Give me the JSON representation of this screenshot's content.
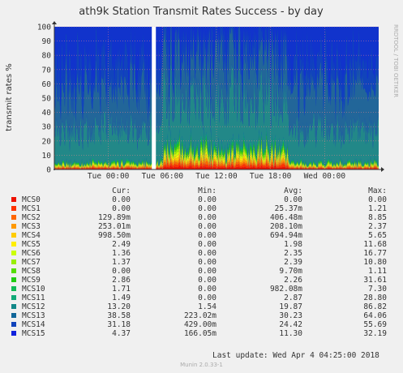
{
  "chart_data": {
    "type": "area",
    "title": "ath9k Station Transmit Rates Success - by day",
    "ylabel": "transmit rates %",
    "ylim": [
      0,
      100
    ],
    "yticks": [
      0,
      10,
      20,
      30,
      40,
      50,
      60,
      70,
      80,
      90,
      100
    ],
    "xticks": [
      "Tue 00:00",
      "Tue 06:00",
      "Tue 12:00",
      "Tue 18:00",
      "Wed 00:00"
    ],
    "x_range": [
      "Mon 18:00",
      "Wed 06:00"
    ],
    "gap_at": "Tue 05:00",
    "grid": true,
    "stacked": true,
    "legend_headers": {
      "cur": "Cur:",
      "min": "Min:",
      "avg": "Avg:",
      "max": "Max:"
    },
    "series": [
      {
        "name": "MCS0",
        "color": "#00cc00",
        "cur": "0.00",
        "min": "0.00",
        "avg": "0.00",
        "max": "0.00"
      },
      {
        "name": "MCS1",
        "color": "#0066b3",
        "cur": "0.00",
        "min": "0.00",
        "avg": "25.37m",
        "max": "1.21"
      },
      {
        "name": "MCS2",
        "color": "#ff8000",
        "cur": "129.89m",
        "min": "0.00",
        "avg": "406.48m",
        "max": "8.85"
      },
      {
        "name": "MCS3",
        "color": "#ffcc00",
        "cur": "253.01m",
        "min": "0.00",
        "avg": "208.10m",
        "max": "2.37"
      },
      {
        "name": "MCS4",
        "color": "#330099",
        "cur": "998.50m",
        "min": "0.00",
        "avg": "694.94m",
        "max": "5.65"
      },
      {
        "name": "MCS5",
        "color": "#990099",
        "cur": "2.49",
        "min": "0.00",
        "avg": "1.98",
        "max": "11.68"
      },
      {
        "name": "MCS6",
        "color": "#ccff00",
        "cur": "1.36",
        "min": "0.00",
        "avg": "2.35",
        "max": "16.77"
      },
      {
        "name": "MCS7",
        "color": "#ff0000",
        "cur": "1.37",
        "min": "0.00",
        "avg": "2.39",
        "max": "10.80"
      },
      {
        "name": "MCS8",
        "color": "#808080",
        "cur": "0.00",
        "min": "0.00",
        "avg": "9.70m",
        "max": "1.11"
      },
      {
        "name": "MCS9",
        "color": "#008f00",
        "cur": "2.86",
        "min": "0.00",
        "avg": "2.26",
        "max": "31.61"
      },
      {
        "name": "MCS10",
        "color": "#00487d",
        "cur": "1.71",
        "min": "0.00",
        "avg": "982.08m",
        "max": "7.30"
      },
      {
        "name": "MCS11",
        "color": "#b35a00",
        "cur": "1.49",
        "min": "0.00",
        "avg": "2.87",
        "max": "28.80"
      },
      {
        "name": "MCS12",
        "color": "#b38f00",
        "cur": "13.20",
        "min": "1.54",
        "avg": "19.87",
        "max": "86.82"
      },
      {
        "name": "MCS13",
        "color": "#6b006b",
        "cur": "38.58",
        "min": "223.02m",
        "avg": "30.23",
        "max": "64.06"
      },
      {
        "name": "MCS14",
        "color": "#8fb300",
        "cur": "31.18",
        "min": "429.00m",
        "avg": "24.42",
        "max": "55.69"
      },
      {
        "name": "MCS15",
        "color": "#b30000",
        "cur": "4.37",
        "min": "166.05m",
        "avg": "11.30",
        "max": "32.19"
      }
    ],
    "swatch_colors": [
      "#ee1100",
      "#ff3300",
      "#ff6600",
      "#ff9900",
      "#ffcc00",
      "#ffee00",
      "#ccff00",
      "#99ee00",
      "#55dd00",
      "#22cc11",
      "#11bb55",
      "#11aa77",
      "#118888",
      "#116699",
      "#1144bb",
      "#1122dd"
    ],
    "area_colors": [
      "#ee1100",
      "#ff3300",
      "#ff6600",
      "#ff9900",
      "#ffcc00",
      "#ffee00",
      "#ccff00",
      "#99ee00",
      "#55dd00",
      "#22cc11",
      "#11bb55",
      "#11aa77",
      "#228888",
      "#226699",
      "#1144bb",
      "#1133cc"
    ]
  },
  "footer": {
    "last_update": "Last update: Wed Apr  4 04:25:00 2018",
    "munin_version": "Munin 2.0.33-1",
    "side_label": "RRDTOOL / TOBI OETIKER"
  }
}
